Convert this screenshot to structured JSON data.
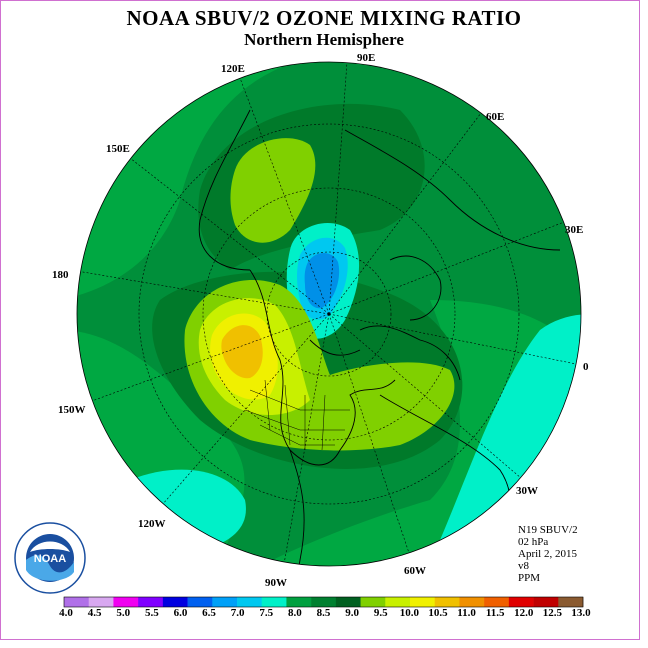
{
  "header": {
    "title": "NOAA SBUV/2 OZONE MIXING RATIO",
    "subtitle": "Northern Hemisphere"
  },
  "longitude_labels": [
    {
      "text": "90E"
    },
    {
      "text": "60E"
    },
    {
      "text": "120E"
    },
    {
      "text": "150E"
    },
    {
      "text": "30E"
    },
    {
      "text": "180"
    },
    {
      "text": "0"
    },
    {
      "text": "150W"
    },
    {
      "text": "30W"
    },
    {
      "text": "120W"
    },
    {
      "text": "60W"
    },
    {
      "text": "90W"
    }
  ],
  "info": {
    "instrument": "N19 SBUV/2",
    "level": "02 hPa",
    "date": "April 2, 2015",
    "version": "v8",
    "units": "PPM"
  },
  "logo": {
    "text": "NOAA",
    "ring_text": "NATIONAL OCEANIC AND ATMOSPHERIC ADMINISTRATION · U.S. DEPARTMENT OF COMMERCE"
  },
  "colorbar": {
    "labels": [
      "4.0",
      "4.5",
      "5.0",
      "5.5",
      "6.0",
      "6.5",
      "7.0",
      "7.5",
      "8.0",
      "8.5",
      "9.0",
      "9.5",
      "10.0",
      "10.5",
      "11.0",
      "11.5",
      "12.0",
      "12.5",
      "13.0"
    ],
    "colors": [
      "#b070e8",
      "#d8a8f0",
      "#f000f0",
      "#8000ff",
      "#0000e0",
      "#0060f0",
      "#00a0f8",
      "#00c8f0",
      "#00f0c8",
      "#00a040",
      "#008030",
      "#006020",
      "#80d000",
      "#c8f000",
      "#f0f000",
      "#f0c000",
      "#f09000",
      "#f06000",
      "#e00000",
      "#c00000",
      "#8a5a30"
    ]
  },
  "map_data": {
    "projection": "north polar stereographic",
    "colors": {
      "background_8_5": "#008f3a",
      "dark_9_0": "#007a2a",
      "green_8_0": "#00a842",
      "cyan_7_5": "#00f0c8",
      "blue_7_0": "#00c8f0",
      "blue_6_5": "#0090e8",
      "lime_9_5": "#80d000",
      "yellowgreen_10_0": "#c8f000",
      "yellow_10_5": "#f0f000",
      "orange_11_0": "#f0c000"
    }
  }
}
